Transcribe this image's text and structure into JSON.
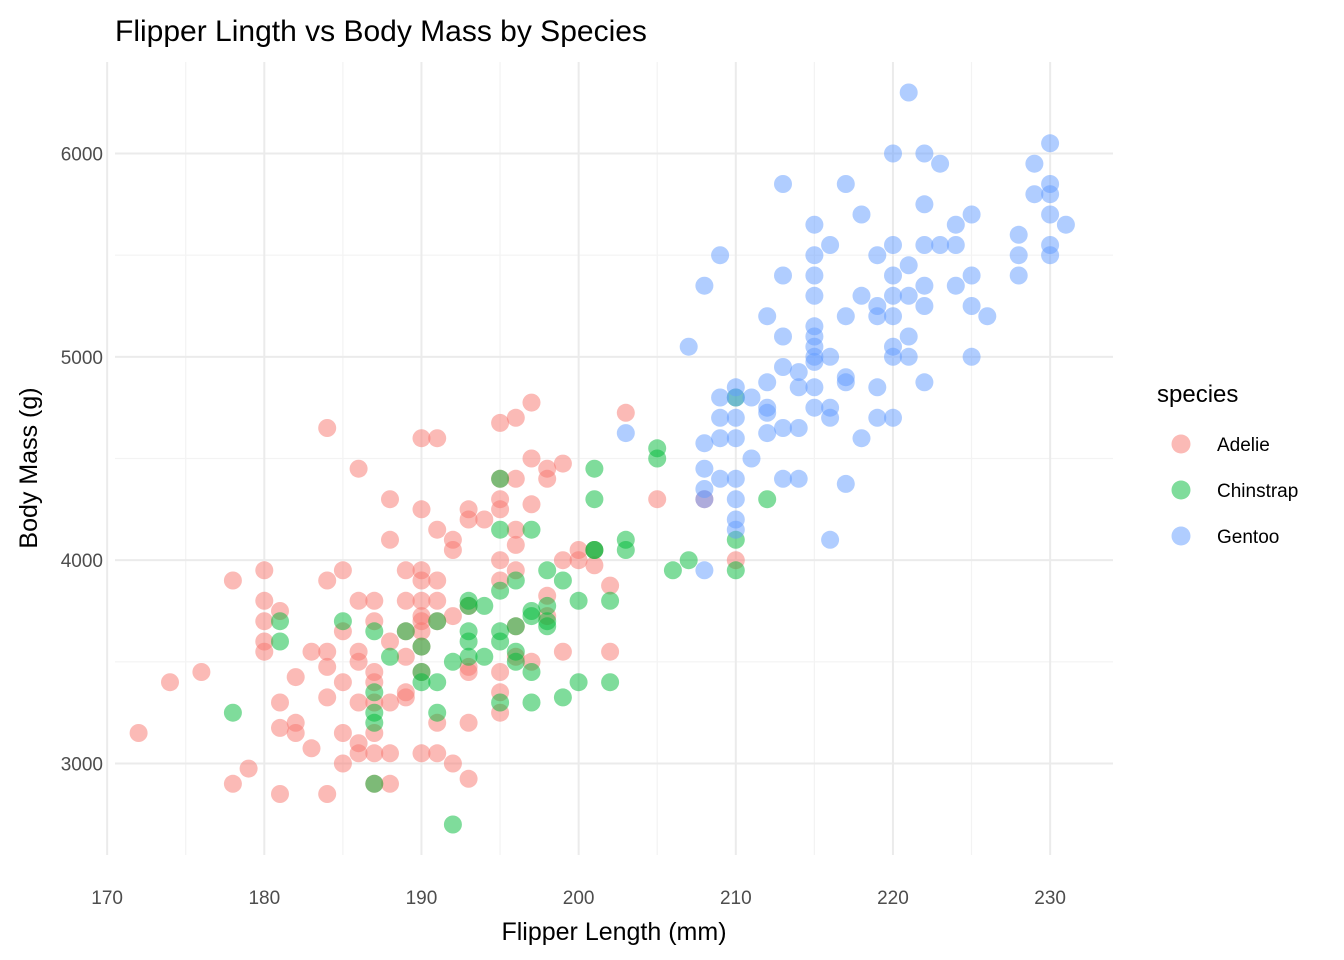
{
  "chart_data": {
    "type": "scatter",
    "title": "Flipper Lingth vs Body Mass by Species",
    "xlabel": "Flipper Length (mm)",
    "ylabel": "Body Mass (g)",
    "xlim": [
      170.5,
      234
    ],
    "ylim": [
      2550,
      6450
    ],
    "x_ticks": [
      170,
      180,
      190,
      200,
      210,
      220,
      230
    ],
    "y_ticks": [
      3000,
      4000,
      5000,
      6000
    ],
    "x_tick_labels": [
      "170",
      "180",
      "190",
      "200",
      "210",
      "220",
      "230"
    ],
    "y_tick_labels": [
      "3000",
      "4000",
      "5000",
      "6000"
    ],
    "grid": true,
    "legend": {
      "title": "species",
      "position": "right"
    },
    "series": [
      {
        "name": "Adelie",
        "color": "#F8766D",
        "points": [
          [
            172,
            3150
          ],
          [
            174,
            3400
          ],
          [
            176,
            3450
          ],
          [
            178,
            3900
          ],
          [
            178,
            2900
          ],
          [
            179,
            2975
          ],
          [
            180,
            3950
          ],
          [
            180,
            3800
          ],
          [
            180,
            3700
          ],
          [
            180,
            3600
          ],
          [
            180,
            3550
          ],
          [
            181,
            3750
          ],
          [
            181,
            3300
          ],
          [
            181,
            3175
          ],
          [
            181,
            2850
          ],
          [
            182,
            3425
          ],
          [
            182,
            3200
          ],
          [
            182,
            3150
          ],
          [
            183,
            3550
          ],
          [
            183,
            3075
          ],
          [
            184,
            4650
          ],
          [
            184,
            3900
          ],
          [
            184,
            3550
          ],
          [
            184,
            3475
          ],
          [
            184,
            3325
          ],
          [
            184,
            2850
          ],
          [
            185,
            3950
          ],
          [
            185,
            3650
          ],
          [
            185,
            3400
          ],
          [
            185,
            3000
          ],
          [
            185,
            3150
          ],
          [
            186,
            4450
          ],
          [
            186,
            3800
          ],
          [
            186,
            3550
          ],
          [
            186,
            3500
          ],
          [
            186,
            3300
          ],
          [
            186,
            3100
          ],
          [
            186,
            3050
          ],
          [
            187,
            3800
          ],
          [
            187,
            3700
          ],
          [
            187,
            3450
          ],
          [
            187,
            3300
          ],
          [
            187,
            3150
          ],
          [
            187,
            3050
          ],
          [
            187,
            2900
          ],
          [
            187,
            3400
          ],
          [
            188,
            4300
          ],
          [
            188,
            4100
          ],
          [
            188,
            3600
          ],
          [
            188,
            3300
          ],
          [
            188,
            3050
          ],
          [
            188,
            2900
          ],
          [
            189,
            3950
          ],
          [
            189,
            3800
          ],
          [
            189,
            3650
          ],
          [
            189,
            3525
          ],
          [
            189,
            3350
          ],
          [
            189,
            3325
          ],
          [
            190,
            4600
          ],
          [
            190,
            4250
          ],
          [
            190,
            3950
          ],
          [
            190,
            3900
          ],
          [
            190,
            3800
          ],
          [
            190,
            3725
          ],
          [
            190,
            3700
          ],
          [
            190,
            3650
          ],
          [
            190,
            3575
          ],
          [
            190,
            3450
          ],
          [
            190,
            3050
          ],
          [
            191,
            4600
          ],
          [
            191,
            4150
          ],
          [
            191,
            3900
          ],
          [
            191,
            3800
          ],
          [
            191,
            3700
          ],
          [
            191,
            3200
          ],
          [
            191,
            3050
          ],
          [
            192,
            4100
          ],
          [
            192,
            4050
          ],
          [
            192,
            3725
          ],
          [
            192,
            3000
          ],
          [
            193,
            4250
          ],
          [
            193,
            4200
          ],
          [
            193,
            3775
          ],
          [
            193,
            3475
          ],
          [
            193,
            3450
          ],
          [
            193,
            3200
          ],
          [
            193,
            2925
          ],
          [
            194,
            4200
          ],
          [
            195,
            4675
          ],
          [
            195,
            4400
          ],
          [
            195,
            4300
          ],
          [
            195,
            4250
          ],
          [
            195,
            4000
          ],
          [
            195,
            3900
          ],
          [
            195,
            3450
          ],
          [
            195,
            3350
          ],
          [
            195,
            3250
          ],
          [
            196,
            4700
          ],
          [
            196,
            4400
          ],
          [
            196,
            4150
          ],
          [
            196,
            4075
          ],
          [
            196,
            3950
          ],
          [
            196,
            3675
          ],
          [
            196,
            3525
          ],
          [
            197,
            4775
          ],
          [
            197,
            4500
          ],
          [
            197,
            4275
          ],
          [
            197,
            3500
          ],
          [
            198,
            4450
          ],
          [
            198,
            4400
          ],
          [
            198,
            3825
          ],
          [
            198,
            3725
          ],
          [
            199,
            4475
          ],
          [
            199,
            4000
          ],
          [
            199,
            3550
          ],
          [
            200,
            4050
          ],
          [
            200,
            4000
          ],
          [
            201,
            4050
          ],
          [
            201,
            3975
          ],
          [
            202,
            3875
          ],
          [
            202,
            3550
          ],
          [
            203,
            4725
          ],
          [
            205,
            4300
          ],
          [
            208,
            4300
          ],
          [
            210,
            4000
          ]
        ]
      },
      {
        "name": "Chinstrap",
        "color": "#00BA38",
        "points": [
          [
            178,
            3250
          ],
          [
            181,
            3700
          ],
          [
            181,
            3600
          ],
          [
            185,
            3700
          ],
          [
            187,
            3650
          ],
          [
            187,
            3350
          ],
          [
            187,
            3250
          ],
          [
            187,
            3200
          ],
          [
            187,
            2900
          ],
          [
            188,
            3525
          ],
          [
            189,
            3650
          ],
          [
            190,
            3575
          ],
          [
            190,
            3450
          ],
          [
            190,
            3400
          ],
          [
            191,
            3700
          ],
          [
            191,
            3400
          ],
          [
            191,
            3250
          ],
          [
            192,
            3500
          ],
          [
            192,
            2700
          ],
          [
            193,
            3800
          ],
          [
            193,
            3775
          ],
          [
            193,
            3650
          ],
          [
            193,
            3600
          ],
          [
            193,
            3525
          ],
          [
            194,
            3775
          ],
          [
            194,
            3525
          ],
          [
            195,
            4400
          ],
          [
            195,
            4150
          ],
          [
            195,
            3850
          ],
          [
            195,
            3650
          ],
          [
            195,
            3600
          ],
          [
            195,
            3300
          ],
          [
            196,
            3900
          ],
          [
            196,
            3675
          ],
          [
            196,
            3550
          ],
          [
            196,
            3500
          ],
          [
            197,
            4150
          ],
          [
            197,
            3750
          ],
          [
            197,
            3725
          ],
          [
            197,
            3450
          ],
          [
            197,
            3300
          ],
          [
            198,
            3950
          ],
          [
            198,
            3775
          ],
          [
            198,
            3700
          ],
          [
            198,
            3675
          ],
          [
            199,
            3900
          ],
          [
            199,
            3325
          ],
          [
            200,
            3800
          ],
          [
            200,
            3400
          ],
          [
            201,
            4450
          ],
          [
            201,
            4300
          ],
          [
            201,
            4050
          ],
          [
            201,
            4050
          ],
          [
            202,
            3800
          ],
          [
            202,
            3400
          ],
          [
            203,
            4100
          ],
          [
            203,
            4050
          ],
          [
            205,
            4550
          ],
          [
            205,
            4500
          ],
          [
            206,
            3950
          ],
          [
            207,
            4000
          ],
          [
            210,
            4800
          ],
          [
            210,
            4100
          ],
          [
            210,
            3950
          ],
          [
            212,
            4300
          ]
        ]
      },
      {
        "name": "Gentoo",
        "color": "#619CFF",
        "points": [
          [
            203,
            4625
          ],
          [
            207,
            5050
          ],
          [
            208,
            5350
          ],
          [
            208,
            4575
          ],
          [
            208,
            4450
          ],
          [
            208,
            4350
          ],
          [
            208,
            4300
          ],
          [
            208,
            3950
          ],
          [
            209,
            5500
          ],
          [
            209,
            4800
          ],
          [
            209,
            4700
          ],
          [
            209,
            4600
          ],
          [
            209,
            4400
          ],
          [
            210,
            4850
          ],
          [
            210,
            4800
          ],
          [
            210,
            4700
          ],
          [
            210,
            4600
          ],
          [
            210,
            4400
          ],
          [
            210,
            4300
          ],
          [
            210,
            4200
          ],
          [
            210,
            4150
          ],
          [
            211,
            4800
          ],
          [
            211,
            4500
          ],
          [
            212,
            5200
          ],
          [
            212,
            4875
          ],
          [
            212,
            4750
          ],
          [
            212,
            4725
          ],
          [
            212,
            4625
          ],
          [
            213,
            5850
          ],
          [
            213,
            5400
          ],
          [
            213,
            5100
          ],
          [
            213,
            4950
          ],
          [
            213,
            4650
          ],
          [
            213,
            4400
          ],
          [
            214,
            4925
          ],
          [
            214,
            4850
          ],
          [
            214,
            4650
          ],
          [
            214,
            4400
          ],
          [
            215,
            5650
          ],
          [
            215,
            5500
          ],
          [
            215,
            5400
          ],
          [
            215,
            5300
          ],
          [
            215,
            5150
          ],
          [
            215,
            5100
          ],
          [
            215,
            5050
          ],
          [
            215,
            5000
          ],
          [
            215,
            4975
          ],
          [
            215,
            4850
          ],
          [
            215,
            4750
          ],
          [
            216,
            5550
          ],
          [
            216,
            5000
          ],
          [
            216,
            4750
          ],
          [
            216,
            4700
          ],
          [
            216,
            4100
          ],
          [
            217,
            5850
          ],
          [
            217,
            5200
          ],
          [
            217,
            4900
          ],
          [
            217,
            4875
          ],
          [
            217,
            4375
          ],
          [
            218,
            5700
          ],
          [
            218,
            5300
          ],
          [
            218,
            4600
          ],
          [
            219,
            5500
          ],
          [
            219,
            5250
          ],
          [
            219,
            5200
          ],
          [
            219,
            4850
          ],
          [
            219,
            4700
          ],
          [
            220,
            6000
          ],
          [
            220,
            5550
          ],
          [
            220,
            5400
          ],
          [
            220,
            5300
          ],
          [
            220,
            5200
          ],
          [
            220,
            5050
          ],
          [
            220,
            5000
          ],
          [
            220,
            4700
          ],
          [
            221,
            6300
          ],
          [
            221,
            5450
          ],
          [
            221,
            5300
          ],
          [
            221,
            5100
          ],
          [
            221,
            5000
          ],
          [
            222,
            6000
          ],
          [
            222,
            5750
          ],
          [
            222,
            5550
          ],
          [
            222,
            5350
          ],
          [
            222,
            5250
          ],
          [
            222,
            4875
          ],
          [
            223,
            5950
          ],
          [
            223,
            5550
          ],
          [
            224,
            5650
          ],
          [
            224,
            5550
          ],
          [
            224,
            5350
          ],
          [
            225,
            5700
          ],
          [
            225,
            5400
          ],
          [
            225,
            5250
          ],
          [
            225,
            5000
          ],
          [
            226,
            5200
          ],
          [
            228,
            5600
          ],
          [
            228,
            5500
          ],
          [
            228,
            5400
          ],
          [
            229,
            5950
          ],
          [
            229,
            5800
          ],
          [
            230,
            6050
          ],
          [
            230,
            5850
          ],
          [
            230,
            5800
          ],
          [
            230,
            5700
          ],
          [
            230,
            5550
          ],
          [
            230,
            5500
          ],
          [
            231,
            5650
          ]
        ]
      }
    ]
  }
}
